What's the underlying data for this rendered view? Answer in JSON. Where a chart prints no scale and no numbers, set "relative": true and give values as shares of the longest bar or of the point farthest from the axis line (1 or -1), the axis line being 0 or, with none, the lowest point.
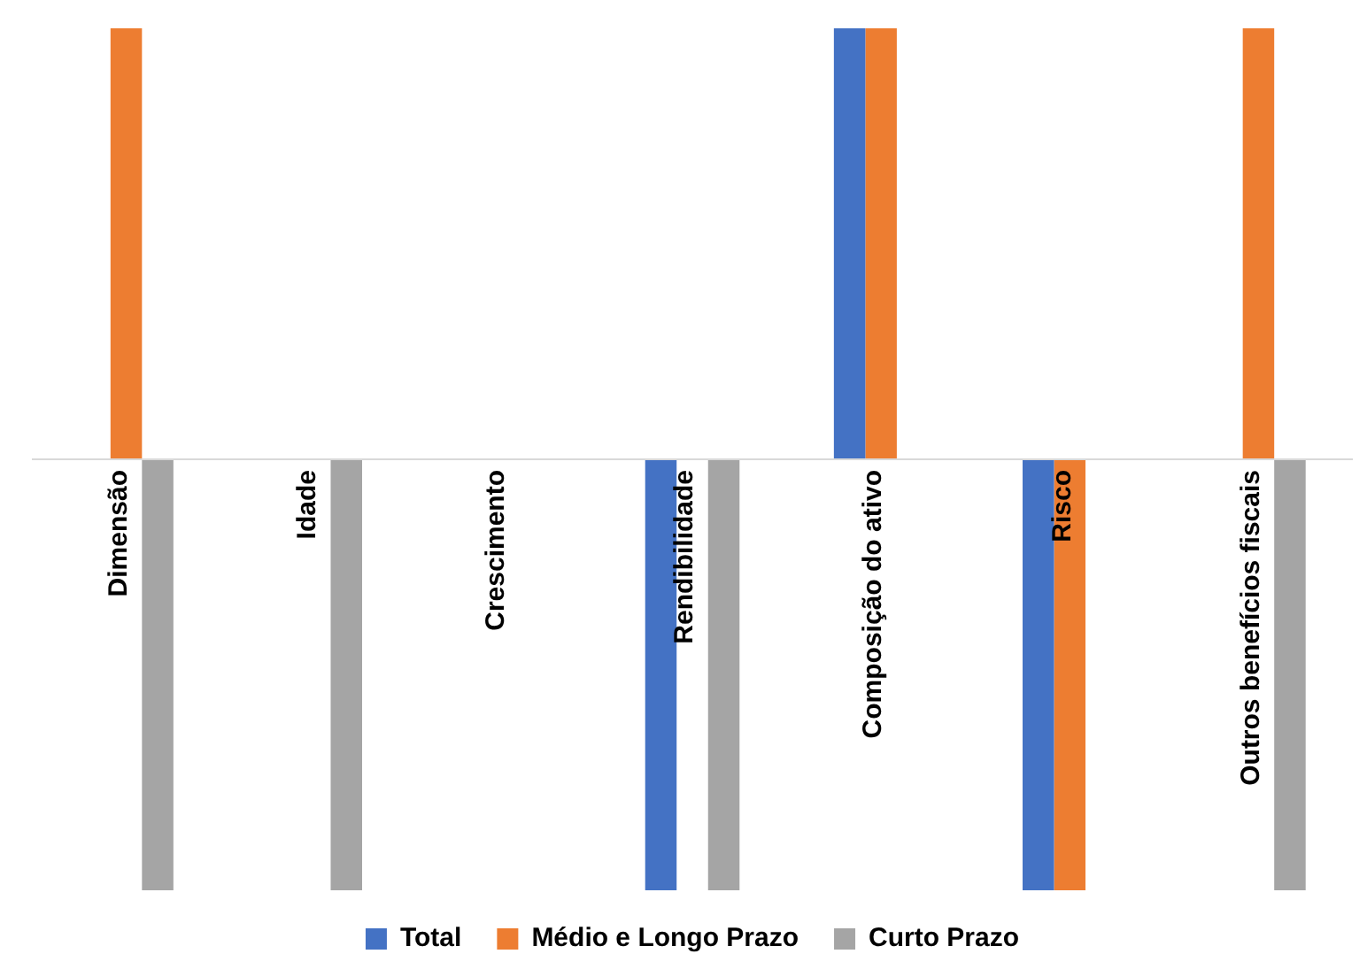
{
  "chart_data": {
    "type": "bar",
    "relative": true,
    "categories": [
      "Dimensão",
      "Idade",
      "Crescimento",
      "Rendibilidade",
      "Composição do ativo",
      "Risco",
      "Outros benefícios fiscais"
    ],
    "series": [
      {
        "name": "Total",
        "color": "#4472c4",
        "values": [
          null,
          null,
          null,
          -1,
          1,
          -1,
          null
        ]
      },
      {
        "name": "Médio e Longo Prazo",
        "color": "#ed7d31",
        "values": [
          1,
          null,
          null,
          null,
          1,
          -1,
          1
        ]
      },
      {
        "name": "Curto Prazo",
        "color": "#a5a5a5",
        "values": [
          -1,
          -1,
          null,
          -1,
          null,
          null,
          -1
        ]
      }
    ],
    "legend": "bottom",
    "grid": false
  }
}
